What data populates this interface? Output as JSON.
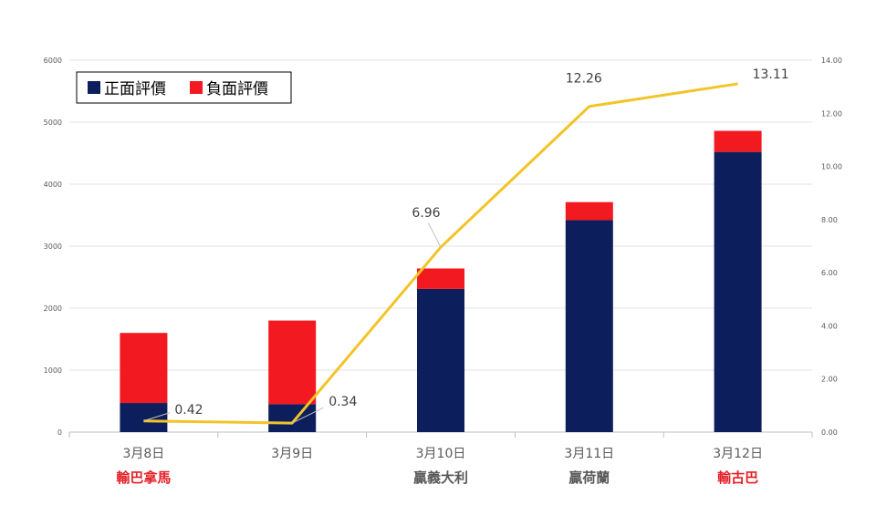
{
  "chart_data": {
    "type": "bar",
    "stacked": true,
    "categories": [
      "3月8日",
      "3月9日",
      "3月10日",
      "3月11日",
      "3月12日"
    ],
    "result_labels": [
      "輸巴拿馬",
      "",
      "贏義大利",
      "贏荷蘭",
      "輸古巴"
    ],
    "result_colors": [
      "#e41f26",
      "",
      "#595959",
      "#595959",
      "#e41f26"
    ],
    "series": [
      {
        "name": "正面評價",
        "color": "#0c1f5c",
        "values": [
          470,
          450,
          2310,
          3420,
          4520
        ]
      },
      {
        "name": "負面評價",
        "color": "#f31920",
        "values": [
          1130,
          1350,
          330,
          290,
          340
        ]
      }
    ],
    "line": {
      "color": "#f2c428",
      "values": [
        0.42,
        0.34,
        6.96,
        12.26,
        13.11
      ],
      "labels": [
        "0.42",
        "0.34",
        "6.96",
        "12.26",
        "13.11"
      ]
    },
    "y_left": {
      "min": 0,
      "max": 6000,
      "ticks": [
        "0",
        "1000",
        "2000",
        "3000",
        "4000",
        "5000",
        "6000"
      ]
    },
    "y_right": {
      "min": 0,
      "max": 14,
      "ticks": [
        "0.00",
        "2.00",
        "4.00",
        "6.00",
        "8.00",
        "10.00",
        "12.00",
        "14.00"
      ]
    },
    "grid": true,
    "legend_position": "top-left"
  }
}
